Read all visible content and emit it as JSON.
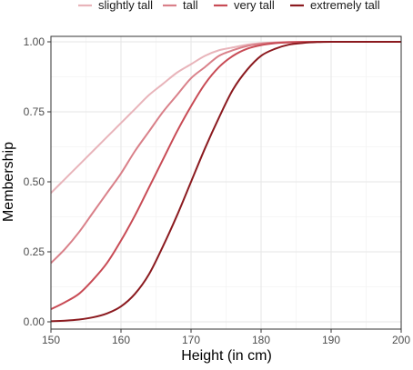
{
  "chart_data": {
    "type": "line",
    "title": "",
    "xlabel": "Height (in cm)",
    "ylabel": "Membership",
    "xlim": [
      150,
      200
    ],
    "ylim": [
      0,
      1
    ],
    "x_ticks": [
      150,
      160,
      170,
      180,
      190,
      200
    ],
    "x_tick_labels": [
      "150",
      "160",
      "170",
      "180",
      "190",
      "200"
    ],
    "y_ticks": [
      0,
      0.25,
      0.5,
      0.75,
      1
    ],
    "y_tick_labels": [
      "0.00",
      "0.25",
      "0.50",
      "0.75",
      "1.00"
    ],
    "grid": true,
    "legend_position": "top",
    "x": [
      150,
      152,
      154,
      156,
      158,
      160,
      162,
      164,
      166,
      168,
      170,
      172,
      174,
      176,
      178,
      180,
      182,
      184,
      186,
      188,
      190,
      195,
      200
    ],
    "series": [
      {
        "name": "slightly tall",
        "color": "#e8b4ba",
        "values": [
          0.46,
          0.51,
          0.56,
          0.61,
          0.66,
          0.71,
          0.76,
          0.81,
          0.85,
          0.89,
          0.92,
          0.95,
          0.97,
          0.98,
          0.99,
          0.995,
          0.998,
          0.999,
          1.0,
          1.0,
          1.0,
          1.0,
          1.0
        ]
      },
      {
        "name": "tall",
        "color": "#d98089",
        "values": [
          0.21,
          0.26,
          0.32,
          0.39,
          0.46,
          0.53,
          0.61,
          0.68,
          0.75,
          0.81,
          0.87,
          0.91,
          0.95,
          0.97,
          0.985,
          0.993,
          0.997,
          0.999,
          1.0,
          1.0,
          1.0,
          1.0,
          1.0
        ]
      },
      {
        "name": "very tall",
        "color": "#c84b55",
        "values": [
          0.045,
          0.07,
          0.1,
          0.15,
          0.21,
          0.29,
          0.38,
          0.48,
          0.58,
          0.68,
          0.77,
          0.85,
          0.91,
          0.95,
          0.975,
          0.988,
          0.995,
          0.998,
          0.999,
          1.0,
          1.0,
          1.0,
          1.0
        ]
      },
      {
        "name": "extremely tall",
        "color": "#8b1a1f",
        "values": [
          0.002,
          0.004,
          0.008,
          0.016,
          0.03,
          0.055,
          0.1,
          0.17,
          0.27,
          0.38,
          0.5,
          0.62,
          0.73,
          0.83,
          0.9,
          0.95,
          0.975,
          0.99,
          0.996,
          0.999,
          1.0,
          1.0,
          1.0
        ]
      }
    ]
  }
}
